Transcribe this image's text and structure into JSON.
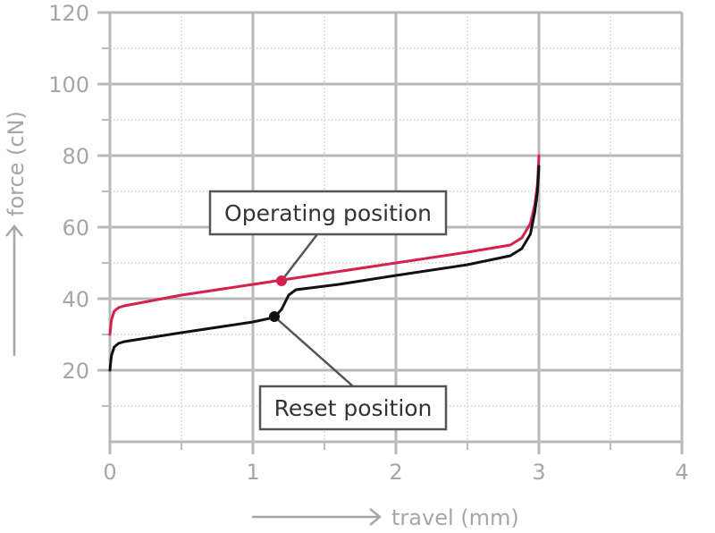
{
  "chart_data": {
    "type": "line",
    "xlabel": "travel (mm)",
    "ylabel": "force (cN)",
    "xlim": [
      0,
      4
    ],
    "ylim": [
      0,
      120
    ],
    "x_ticks": [
      "0",
      "1",
      "2",
      "3",
      "4"
    ],
    "y_ticks": [
      "20",
      "40",
      "60",
      "80",
      "100",
      "120"
    ],
    "grid": true,
    "series": [
      {
        "color": "#d6204e",
        "x": [
          0,
          0.01,
          0.03,
          0.06,
          0.1,
          0.5,
          1.0,
          1.5,
          2.0,
          2.5,
          2.8,
          2.88,
          2.94,
          2.97,
          2.99,
          3.0
        ],
        "y": [
          30,
          34,
          36.5,
          37.5,
          38,
          41,
          44,
          47,
          50,
          53,
          55,
          57,
          61,
          66,
          72,
          80
        ]
      },
      {
        "color": "#111111",
        "x": [
          0,
          0.01,
          0.03,
          0.06,
          0.1,
          0.5,
          1.0,
          1.15,
          1.2,
          1.25,
          1.3,
          1.6,
          2.0,
          2.5,
          2.8,
          2.88,
          2.94,
          2.97,
          2.99,
          3.0
        ],
        "y": [
          20,
          24,
          26.5,
          27.5,
          28,
          30.5,
          33.5,
          34.8,
          37,
          41,
          42.5,
          44,
          46.5,
          49.5,
          52,
          54,
          58,
          64,
          70,
          77
        ]
      }
    ],
    "annotations": [
      {
        "label": "Operating position",
        "x": 1.2,
        "y": 45,
        "color": "#d6204e"
      },
      {
        "label": "Reset position",
        "x": 1.15,
        "y": 35,
        "color": "#111111"
      }
    ]
  }
}
